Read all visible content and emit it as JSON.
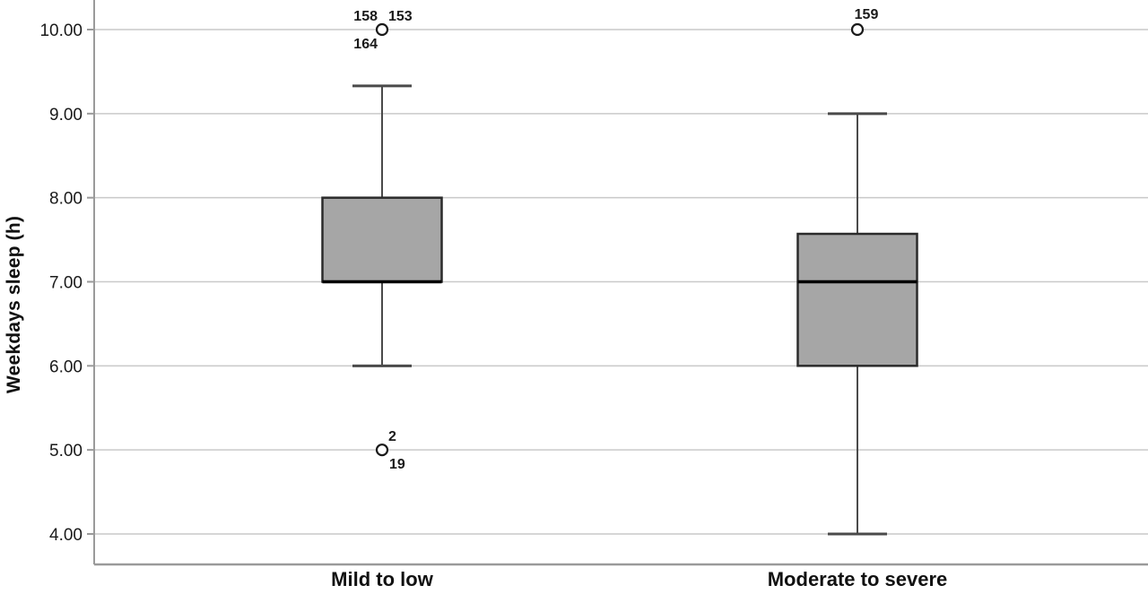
{
  "figure": {
    "background": "#ffffff"
  },
  "chart_data": {
    "type": "boxplot",
    "title": "",
    "xlabel": "",
    "ylabel": "Weekdays sleep (h)",
    "categories": [
      "Mild to low",
      "Moderate to severe"
    ],
    "grid": true,
    "legend": false,
    "y_axis": {
      "tick_labels": [
        "10.00",
        "9.00",
        "8.00",
        "7.00",
        "6.00",
        "5.00",
        "4.00"
      ],
      "tick_values": [
        10,
        9,
        8,
        7,
        6,
        5,
        4
      ],
      "range": [
        3.6,
        10.4
      ]
    },
    "series": [
      {
        "category": "Mild to low",
        "whisker_low": 6.0,
        "q1": 7.0,
        "median": 7.0,
        "q3": 8.0,
        "whisker_high": 9.33,
        "outliers": [
          {
            "value": 10.0,
            "labels": [
              {
                "text": "158",
                "position": "above-left"
              },
              {
                "text": "153",
                "position": "above-right"
              },
              {
                "text": "164",
                "position": "below-left"
              }
            ]
          },
          {
            "value": 5.0,
            "labels": [
              {
                "text": "2",
                "position": "above-right"
              },
              {
                "text": "19",
                "position": "below-right"
              }
            ]
          }
        ]
      },
      {
        "category": "Moderate to severe",
        "whisker_low": 4.0,
        "q1": 6.0,
        "median": 7.0,
        "q3": 7.57,
        "whisker_high": 9.0,
        "outliers": [
          {
            "value": 10.0,
            "labels": [
              {
                "text": "159",
                "position": "above"
              }
            ]
          }
        ]
      }
    ],
    "colors": {
      "box_fill": "#a6a6a6",
      "box_border": "#2b2b2b",
      "median": "#000000",
      "whisker": "#4a4a4a",
      "gridline": "#c9c9c9",
      "axis": "#9a9a9a",
      "tick": "#9a9a9a",
      "outlier_stroke": "#1a1a1a",
      "outlier_fill": "#ffffff",
      "text": "#1a1a1a"
    }
  }
}
